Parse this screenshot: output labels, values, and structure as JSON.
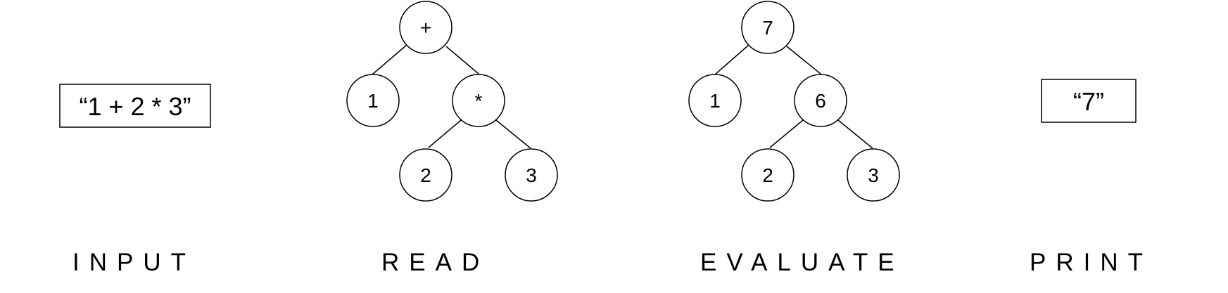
{
  "stages": {
    "input": {
      "label": "INPUT",
      "box_text": "“1 + 2 * 3”"
    },
    "read": {
      "label": "READ",
      "tree": {
        "root": "+",
        "left": "1",
        "right": "*",
        "right_left": "2",
        "right_right": "3"
      }
    },
    "evaluate": {
      "label": "EVALUATE",
      "tree": {
        "root": "7",
        "left": "1",
        "right": "6",
        "right_left": "2",
        "right_right": "3"
      }
    },
    "print": {
      "label": "PRINT",
      "box_text": "“7”"
    }
  }
}
